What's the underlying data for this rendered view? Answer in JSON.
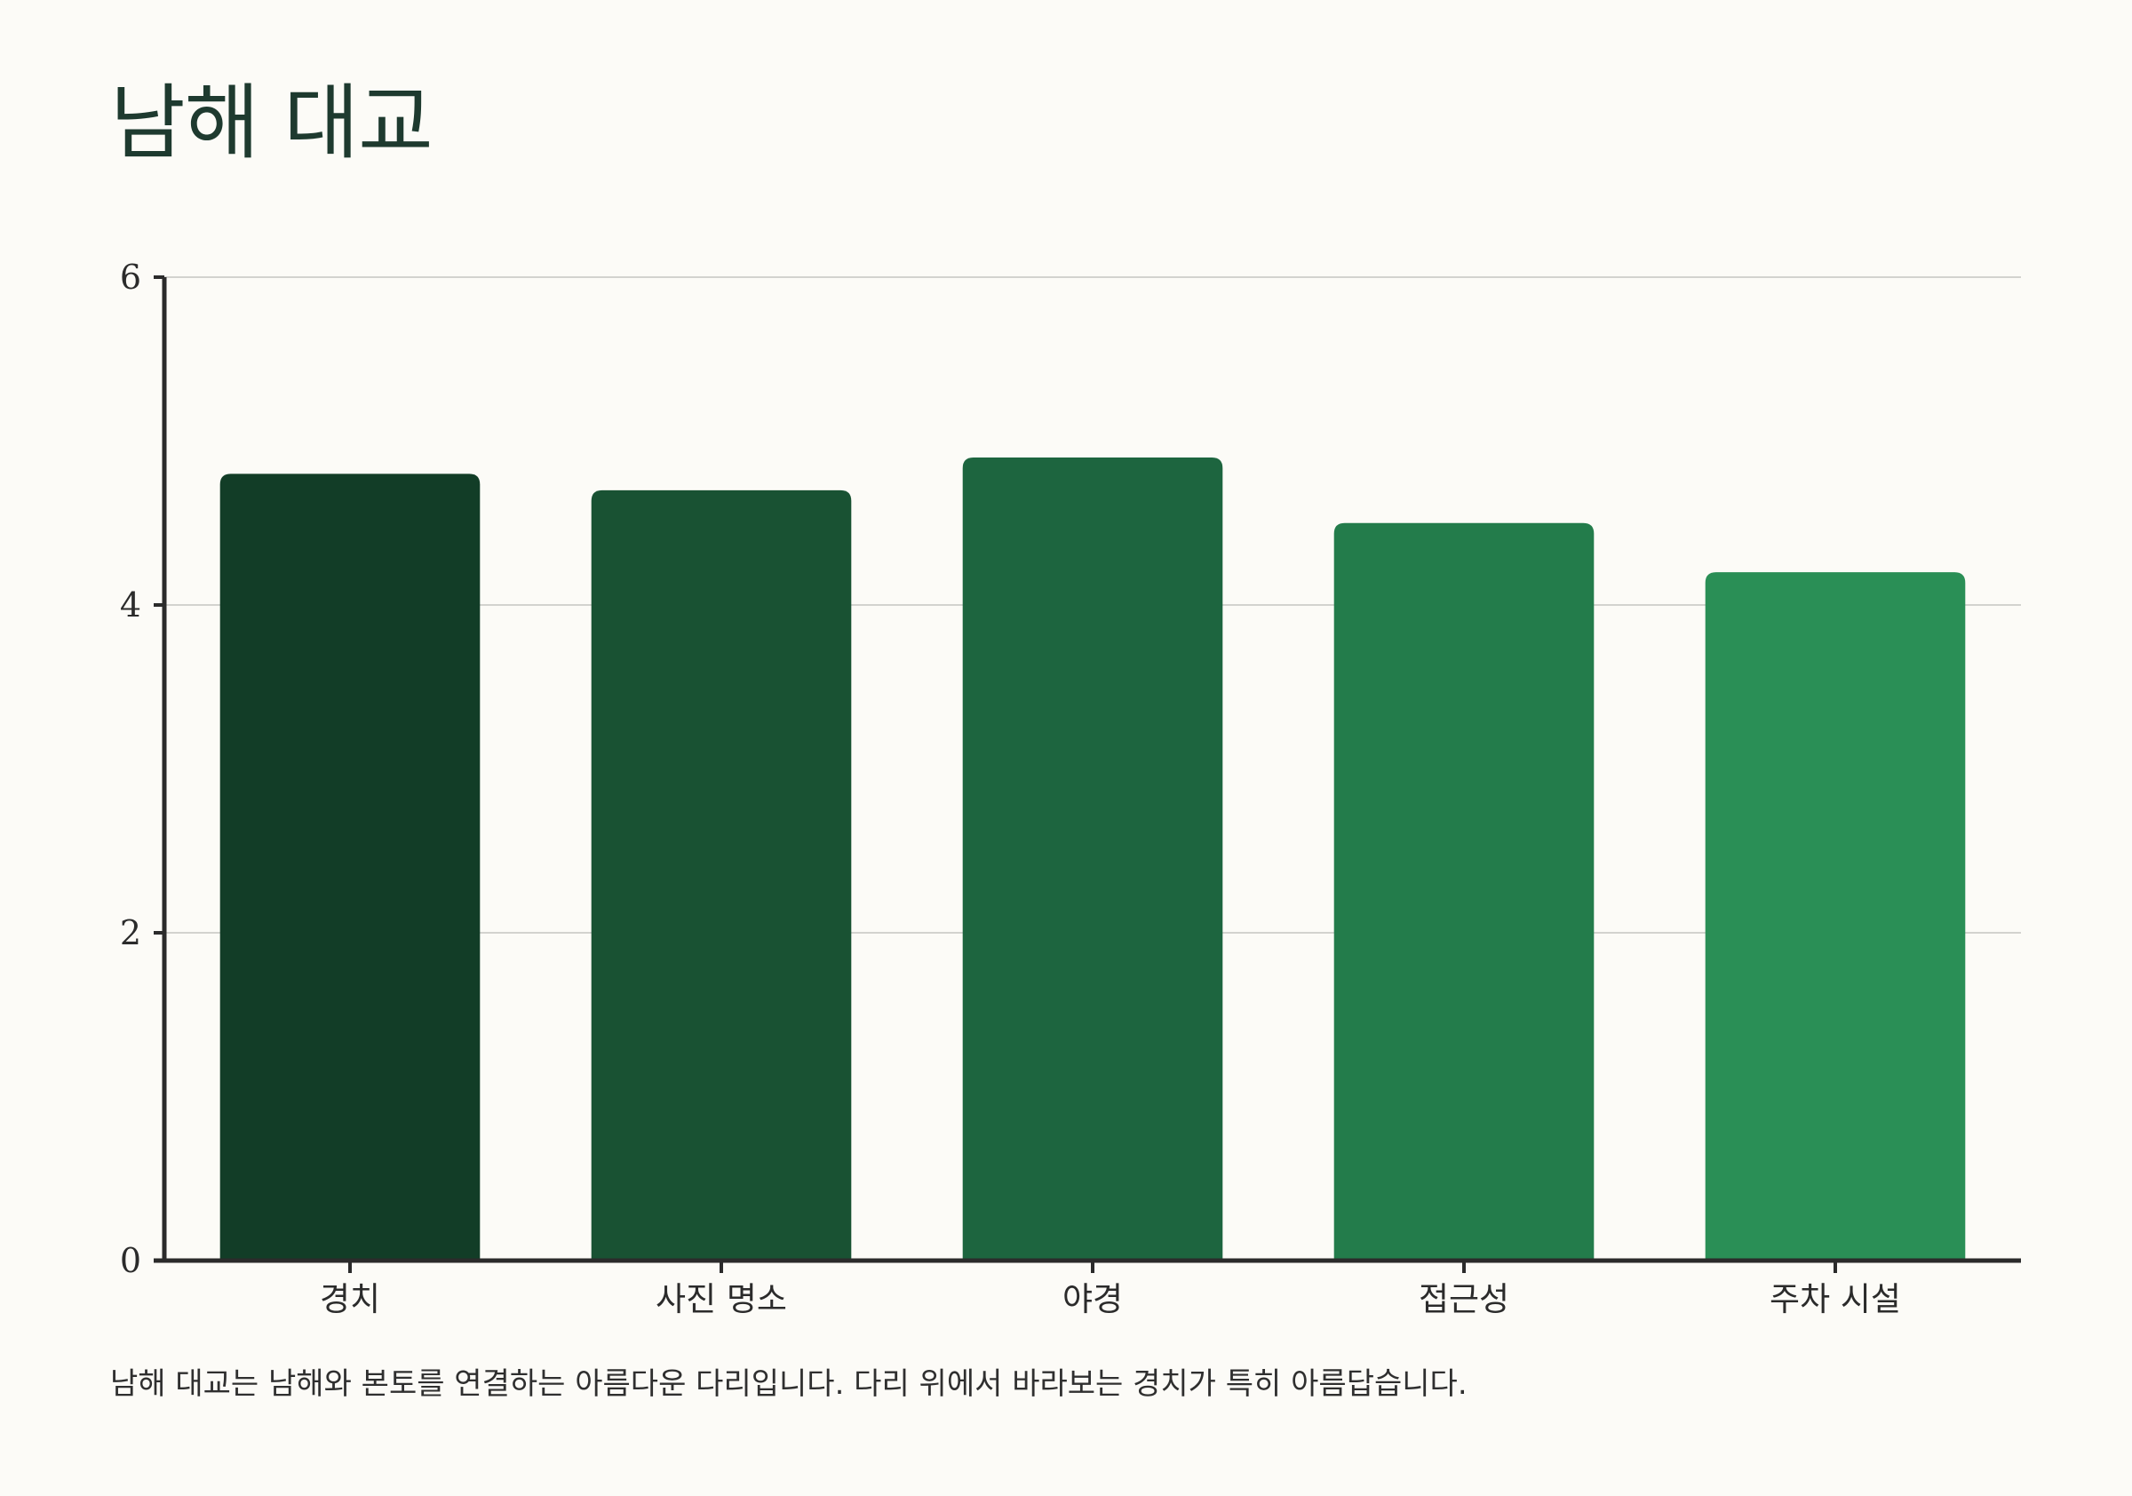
{
  "title": "남해 대교",
  "caption": "남해 대교는 남해와 본토를 연결하는 아름다운 다리입니다. 다리 위에서 바라보는 경치가 특히 아름답습니다.",
  "colors": {
    "background": "#fcfbf7",
    "title": "#1e3a2f",
    "axis": "#2b2b2b",
    "grid": "#d3d3cf"
  },
  "chart_data": {
    "type": "bar",
    "title": "",
    "xlabel": "",
    "ylabel": "",
    "categories": [
      "경치",
      "사진 명소",
      "야경",
      "접근성",
      "주차 시설"
    ],
    "values": [
      4.8,
      4.7,
      4.9,
      4.5,
      4.2
    ],
    "bar_colors": [
      "#123d27",
      "#195233",
      "#1d653f",
      "#237c4b",
      "#2a8f56"
    ],
    "ylim": [
      0,
      6
    ],
    "yticks": [
      "0",
      "2",
      "4",
      "6"
    ],
    "grid": true,
    "legend": "none"
  }
}
